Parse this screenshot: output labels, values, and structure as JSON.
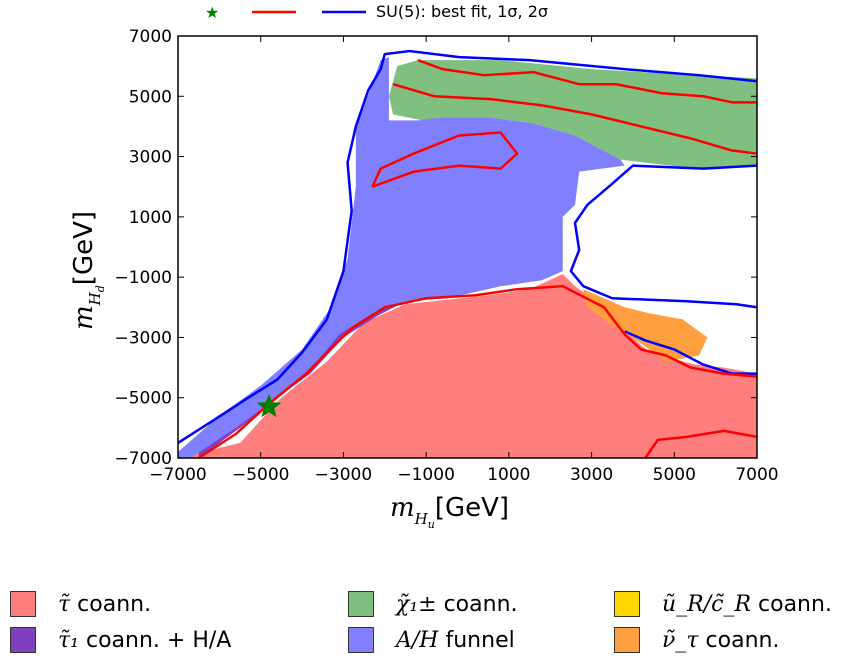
{
  "chart_data": {
    "type": "area",
    "xlabel": "m_{H_u} [GeV]",
    "ylabel": "m_{H_d} [GeV]",
    "xlim": [
      -7000,
      7000
    ],
    "ylim": [
      -7000,
      7000
    ],
    "xticks": [
      -7000,
      -5000,
      -3000,
      -1000,
      1000,
      3000,
      5000,
      7000
    ],
    "yticks": [
      -7000,
      -5000,
      -3000,
      -1000,
      1000,
      3000,
      5000,
      7000
    ],
    "xtick_labels": [
      "−7000",
      "−5000",
      "−3000",
      "−1000",
      "1000",
      "3000",
      "5000",
      "7000"
    ],
    "ytick_labels": [
      "−7000",
      "−5000",
      "−3000",
      "−1000",
      "1000",
      "3000",
      "5000",
      "7000"
    ],
    "top_legend": {
      "best_fit_marker": "★",
      "label": "SU(5): best fit, 1σ, 2σ"
    },
    "best_fit": {
      "x": -4800,
      "y": -5300
    },
    "regions": [
      {
        "name": "stau_coann",
        "label_text": " coann.",
        "color": "#ff7f7f",
        "polygon": [
          [
            -7000,
            -7000
          ],
          [
            -5500,
            -6500
          ],
          [
            -4500,
            -5000
          ],
          [
            -3400,
            -3800
          ],
          [
            -2500,
            -2500
          ],
          [
            -1500,
            -1900
          ],
          [
            -500,
            -1750
          ],
          [
            500,
            -1600
          ],
          [
            1500,
            -1400
          ],
          [
            2300,
            -900
          ],
          [
            2600,
            -1300
          ],
          [
            3300,
            -2000
          ],
          [
            3900,
            -2900
          ],
          [
            4400,
            -3500
          ],
          [
            5500,
            -3900
          ],
          [
            6200,
            -4000
          ],
          [
            7000,
            -4200
          ],
          [
            7000,
            -7000
          ]
        ]
      },
      {
        "name": "stau1_coann_HA",
        "label_text": " coann. + ",
        "color": "#7f3fbf",
        "polygon": [
          [
            -6500,
            -7000
          ],
          [
            -5500,
            -6000
          ],
          [
            -4800,
            -5200
          ],
          [
            -3800,
            -4200
          ],
          [
            -3000,
            -3000
          ],
          [
            -2200,
            -2300
          ],
          [
            -1500,
            -1800
          ],
          [
            -500,
            -1700
          ],
          [
            800,
            -1300
          ],
          [
            1800,
            -1100
          ],
          [
            2300,
            -800
          ],
          [
            2300,
            1200
          ],
          [
            1800,
            1800
          ],
          [
            1000,
            2300
          ],
          [
            0,
            2500
          ],
          [
            -1500,
            2200
          ],
          [
            -2300,
            1000
          ],
          [
            -2800,
            -700
          ],
          [
            -3300,
            -2200
          ],
          [
            -4000,
            -3600
          ],
          [
            -5300,
            -5200
          ],
          [
            -6500,
            -6300
          ]
        ]
      },
      {
        "name": "chargino_coann",
        "label_text": " coann.",
        "color": "#7fbf7f",
        "polygon": [
          [
            -600,
            6200
          ],
          [
            800,
            6200
          ],
          [
            3000,
            5900
          ],
          [
            5500,
            5700
          ],
          [
            7000,
            5600
          ],
          [
            7000,
            2700
          ],
          [
            5500,
            2600
          ],
          [
            3700,
            2900
          ],
          [
            2600,
            3700
          ],
          [
            1600,
            4100
          ],
          [
            500,
            4300
          ],
          [
            -600,
            4300
          ],
          [
            -1100,
            4200
          ],
          [
            -1800,
            4400
          ],
          [
            -1900,
            5000
          ],
          [
            -1700,
            6000
          ],
          [
            -1200,
            6200
          ]
        ]
      },
      {
        "name": "AH_funnel",
        "label_text": " funnel",
        "color": "#8080ff",
        "polygon": [
          [
            -7000,
            -6800
          ],
          [
            -6000,
            -5600
          ],
          [
            -5000,
            -4600
          ],
          [
            -4000,
            -3400
          ],
          [
            -3300,
            -2000
          ],
          [
            -2900,
            -400
          ],
          [
            -2700,
            2000
          ],
          [
            -2700,
            3900
          ],
          [
            -2100,
            6200
          ],
          [
            -1900,
            6300
          ],
          [
            -1900,
            4200
          ],
          [
            -1200,
            4200
          ],
          [
            -600,
            4300
          ],
          [
            500,
            4300
          ],
          [
            1600,
            4100
          ],
          [
            2600,
            3700
          ],
          [
            3700,
            2900
          ],
          [
            3800,
            2700
          ],
          [
            2700,
            2500
          ],
          [
            2600,
            1400
          ],
          [
            2300,
            1000
          ],
          [
            2300,
            -800
          ],
          [
            1800,
            -1100
          ],
          [
            800,
            -1300
          ],
          [
            -500,
            -1700
          ],
          [
            -1500,
            -1800
          ],
          [
            -2300,
            -2200
          ],
          [
            -3100,
            -2900
          ],
          [
            -3800,
            -4100
          ],
          [
            -4600,
            -5000
          ],
          [
            -5600,
            -6000
          ],
          [
            -6700,
            -7000
          ],
          [
            -7000,
            -7000
          ]
        ]
      },
      {
        "name": "uR_cR_coann",
        "label_text": " coann.",
        "color": "#ffd700",
        "polygon": []
      },
      {
        "name": "sneutrino_tau_coann",
        "label_text": " coann.",
        "color": "#ff9f3f",
        "polygon": [
          [
            2800,
            -1400
          ],
          [
            3800,
            -2000
          ],
          [
            4400,
            -2200
          ],
          [
            5200,
            -2400
          ],
          [
            5800,
            -3000
          ],
          [
            5600,
            -3600
          ],
          [
            4800,
            -3800
          ],
          [
            4200,
            -3200
          ],
          [
            3500,
            -2600
          ],
          [
            2900,
            -2000
          ]
        ]
      }
    ],
    "contours": [
      {
        "level": "2sigma",
        "color": "#0000ff",
        "points": [
          [
            -7000,
            -6500
          ],
          [
            -6200,
            -5800
          ],
          [
            -5300,
            -5000
          ],
          [
            -4600,
            -4400
          ],
          [
            -4000,
            -3500
          ],
          [
            -3400,
            -2400
          ],
          [
            -3000,
            -800
          ],
          [
            -2800,
            1200
          ],
          [
            -2900,
            2800
          ],
          [
            -2700,
            4000
          ],
          [
            -2400,
            5200
          ],
          [
            -2100,
            5900
          ],
          [
            -2000,
            6400
          ],
          [
            -1400,
            6500
          ],
          [
            -200,
            6300
          ],
          [
            1500,
            6200
          ],
          [
            3800,
            5900
          ],
          [
            5600,
            5700
          ],
          [
            7000,
            5500
          ]
        ]
      },
      {
        "level": "2sigma",
        "color": "#0000ff",
        "points": [
          [
            7000,
            2700
          ],
          [
            5700,
            2600
          ],
          [
            4000,
            2700
          ],
          [
            3500,
            2100
          ],
          [
            2900,
            1400
          ],
          [
            2600,
            800
          ],
          [
            2700,
            -100
          ],
          [
            2500,
            -800
          ],
          [
            2800,
            -1300
          ],
          [
            3500,
            -1700
          ],
          [
            5300,
            -1800
          ],
          [
            6500,
            -1900
          ],
          [
            7000,
            -2000
          ]
        ]
      },
      {
        "level": "2sigma",
        "color": "#0000ff",
        "points": [
          [
            7000,
            -4200
          ],
          [
            6400,
            -4200
          ],
          [
            5700,
            -3900
          ],
          [
            5000,
            -3400
          ],
          [
            4300,
            -3100
          ],
          [
            3800,
            -2800
          ]
        ]
      },
      {
        "level": "1sigma",
        "color": "#ff0000",
        "points": [
          [
            -6500,
            -7000
          ],
          [
            -5600,
            -6200
          ],
          [
            -4800,
            -5200
          ],
          [
            -3900,
            -4200
          ],
          [
            -3400,
            -3500
          ],
          [
            -2800,
            -2700
          ],
          [
            -2000,
            -2000
          ],
          [
            -1000,
            -1700
          ],
          [
            200,
            -1600
          ],
          [
            1200,
            -1400
          ],
          [
            2300,
            -1300
          ],
          [
            3300,
            -2000
          ],
          [
            3800,
            -2900
          ],
          [
            4200,
            -3400
          ],
          [
            4800,
            -3600
          ],
          [
            5400,
            -4000
          ],
          [
            6200,
            -4200
          ],
          [
            7000,
            -4300
          ]
        ]
      },
      {
        "level": "1sigma",
        "color": "#ff0000",
        "points": [
          [
            -1200,
            6200
          ],
          [
            -600,
            5900
          ],
          [
            400,
            5700
          ],
          [
            1600,
            5800
          ],
          [
            2700,
            5400
          ],
          [
            3600,
            5400
          ],
          [
            4700,
            5100
          ],
          [
            5700,
            5000
          ],
          [
            6400,
            4800
          ],
          [
            7000,
            4800
          ]
        ]
      },
      {
        "level": "1sigma",
        "color": "#ff0000",
        "points": [
          [
            -1800,
            5400
          ],
          [
            -800,
            5000
          ],
          [
            600,
            4900
          ],
          [
            1800,
            4700
          ],
          [
            3000,
            4400
          ],
          [
            4200,
            4000
          ],
          [
            5400,
            3600
          ],
          [
            6400,
            3200
          ],
          [
            7000,
            3100
          ]
        ]
      },
      {
        "level": "1sigma",
        "color": "#ff0000",
        "points": [
          [
            -2300,
            2000
          ],
          [
            -1300,
            2500
          ],
          [
            -200,
            2700
          ],
          [
            800,
            2600
          ],
          [
            1200,
            3100
          ],
          [
            800,
            3800
          ],
          [
            -200,
            3700
          ],
          [
            -1300,
            3100
          ],
          [
            -2100,
            2600
          ],
          [
            -2300,
            2000
          ]
        ]
      },
      {
        "level": "1sigma",
        "color": "#ff0000",
        "points": [
          [
            7000,
            -6300
          ],
          [
            6200,
            -6100
          ],
          [
            5300,
            -6300
          ],
          [
            4600,
            -6400
          ],
          [
            4300,
            -7000
          ]
        ]
      }
    ]
  },
  "bottom_legend": [
    {
      "math": "τ̃",
      "text": " coann.",
      "color": "#ff7f7f"
    },
    {
      "math": "χ̃₁±",
      "text": " coann.",
      "color": "#7fbf7f"
    },
    {
      "math": "ũ_R/c̃_R",
      "text": " coann.",
      "color": "#ffd700"
    },
    {
      "math": "τ̃₁",
      "text": " coann. + H/A",
      "color": "#7f3fbf"
    },
    {
      "math": "A/H",
      "text": " funnel",
      "color": "#8080ff"
    },
    {
      "math": "ν̃_τ",
      "text": " coann.",
      "color": "#ff9f3f"
    }
  ]
}
